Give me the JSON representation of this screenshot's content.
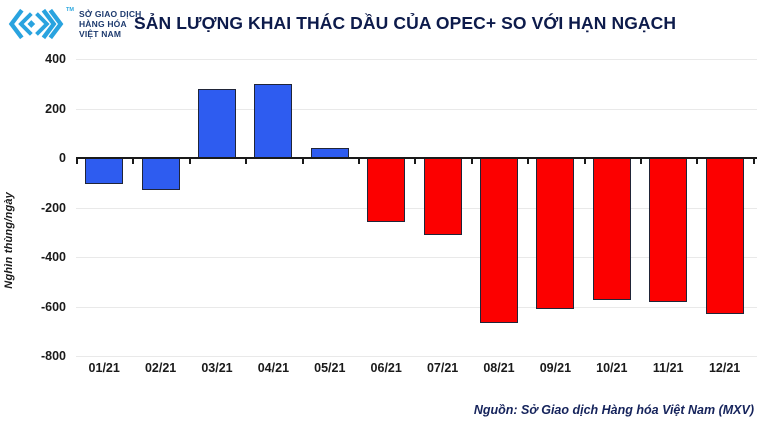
{
  "header": {
    "logo": {
      "org_lines": [
        "SỞ GIAO DỊCH",
        "HÀNG HÓA",
        "VIỆT NAM"
      ],
      "trademark": "TM",
      "brand_color": "#29a3df",
      "text_color": "#1d3a6e"
    },
    "title": "SẢN LƯỢNG KHAI THÁC DẦU CỦA OPEC+ SO VỚI HẠN NGẠCH"
  },
  "footer": {
    "source": "Nguồn: Sở Giao dịch Hàng hóa Việt Nam (MXV)"
  },
  "chart_data": {
    "type": "bar",
    "title": "SẢN LƯỢNG KHAI THÁC DẦU CỦA OPEC+ SO VỚI HẠN NGẠCH",
    "xlabel": "",
    "ylabel": "Nghìn thùng/ngày",
    "categories": [
      "01/21",
      "02/21",
      "03/21",
      "04/21",
      "05/21",
      "06/21",
      "07/21",
      "08/21",
      "09/21",
      "10/21",
      "11/21",
      "12/21"
    ],
    "values": [
      -105,
      -130,
      280,
      300,
      40,
      -260,
      -310,
      -665,
      -610,
      -575,
      -580,
      -630
    ],
    "bar_colors": [
      "blue",
      "blue",
      "blue",
      "blue",
      "blue",
      "red",
      "red",
      "red",
      "red",
      "red",
      "red",
      "red"
    ],
    "colors": {
      "blue": "#2e5cf0",
      "red": "#fc0000",
      "bar_border": "#202538"
    },
    "ylim": [
      -800,
      400
    ],
    "yticks": [
      400,
      200,
      0,
      -200,
      -400,
      -600,
      -800
    ],
    "grid": true,
    "legend": false
  }
}
